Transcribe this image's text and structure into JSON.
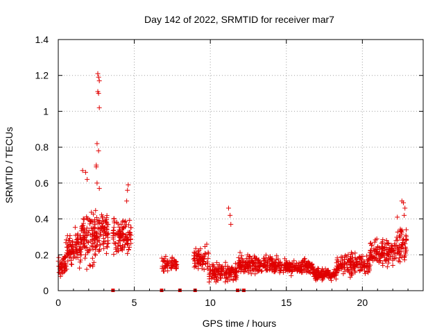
{
  "chart_data": {
    "type": "scatter",
    "title": "Day 142 of 2022, SRMTID for receiver mar7",
    "xlabel": "GPS time / hours",
    "ylabel": "SRMTID / TECUs",
    "xlim": [
      0,
      24
    ],
    "ylim": [
      0,
      1.4
    ],
    "xticks": [
      0,
      5,
      10,
      15,
      20
    ],
    "yticks": [
      0,
      0.2,
      0.4,
      0.6,
      0.8,
      1.0,
      1.2,
      1.4
    ],
    "xtick_labels": [
      "0",
      "5",
      "10",
      "15",
      "20"
    ],
    "ytick_labels": [
      "0",
      "0.2",
      "0.4",
      "0.6",
      "0.8",
      "1",
      "1.2",
      "1.4"
    ],
    "grid": true,
    "marker": "plus",
    "color": "#e00000",
    "clusters": [
      {
        "x_start": 0.0,
        "x_end": 0.5,
        "y_base": 0.14,
        "y_spread": 0.07,
        "count": 45
      },
      {
        "x_start": 0.5,
        "x_end": 1.5,
        "y_base": 0.24,
        "y_spread": 0.1,
        "count": 90
      },
      {
        "x_start": 1.5,
        "x_end": 2.5,
        "y_base": 0.3,
        "y_spread": 0.16,
        "count": 110
      },
      {
        "x_start": 2.5,
        "x_end": 3.3,
        "y_base": 0.32,
        "y_spread": 0.12,
        "count": 80
      },
      {
        "x_start": 3.6,
        "x_end": 4.8,
        "y_base": 0.3,
        "y_spread": 0.1,
        "count": 110
      },
      {
        "x_start": 6.8,
        "x_end": 7.8,
        "y_base": 0.15,
        "y_spread": 0.04,
        "count": 60
      },
      {
        "x_start": 8.9,
        "x_end": 9.9,
        "y_base": 0.18,
        "y_spread": 0.07,
        "count": 70
      },
      {
        "x_start": 9.9,
        "x_end": 11.8,
        "y_base": 0.1,
        "y_spread": 0.05,
        "count": 130
      },
      {
        "x_start": 11.8,
        "x_end": 14.5,
        "y_base": 0.15,
        "y_spread": 0.05,
        "count": 200
      },
      {
        "x_start": 14.5,
        "x_end": 16.8,
        "y_base": 0.13,
        "y_spread": 0.04,
        "count": 180
      },
      {
        "x_start": 16.8,
        "x_end": 18.3,
        "y_base": 0.09,
        "y_spread": 0.03,
        "count": 120
      },
      {
        "x_start": 18.3,
        "x_end": 20.5,
        "y_base": 0.15,
        "y_spread": 0.06,
        "count": 150
      },
      {
        "x_start": 20.5,
        "x_end": 22.2,
        "y_base": 0.21,
        "y_spread": 0.07,
        "count": 130
      },
      {
        "x_start": 22.2,
        "x_end": 22.9,
        "y_base": 0.26,
        "y_spread": 0.1,
        "count": 60
      }
    ],
    "highlight_points": [
      {
        "x": 2.6,
        "y": 1.21
      },
      {
        "x": 2.65,
        "y": 1.19
      },
      {
        "x": 2.7,
        "y": 1.17
      },
      {
        "x": 2.6,
        "y": 1.11
      },
      {
        "x": 2.65,
        "y": 1.1
      },
      {
        "x": 2.7,
        "y": 1.02
      },
      {
        "x": 2.55,
        "y": 0.82
      },
      {
        "x": 2.65,
        "y": 0.78
      },
      {
        "x": 2.5,
        "y": 0.7
      },
      {
        "x": 2.5,
        "y": 0.69
      },
      {
        "x": 1.6,
        "y": 0.67
      },
      {
        "x": 1.8,
        "y": 0.66
      },
      {
        "x": 1.9,
        "y": 0.62
      },
      {
        "x": 2.55,
        "y": 0.6
      },
      {
        "x": 2.7,
        "y": 0.57
      },
      {
        "x": 4.6,
        "y": 0.59
      },
      {
        "x": 4.55,
        "y": 0.56
      },
      {
        "x": 4.5,
        "y": 0.5
      },
      {
        "x": 11.2,
        "y": 0.46
      },
      {
        "x": 11.3,
        "y": 0.42
      },
      {
        "x": 11.35,
        "y": 0.37
      },
      {
        "x": 22.6,
        "y": 0.5
      },
      {
        "x": 22.7,
        "y": 0.49
      },
      {
        "x": 22.8,
        "y": 0.46
      },
      {
        "x": 22.75,
        "y": 0.42
      },
      {
        "x": 22.3,
        "y": 0.41
      }
    ],
    "zero_points": [
      3.6,
      6.8,
      8.0,
      9.0,
      11.8,
      12.2
    ]
  }
}
